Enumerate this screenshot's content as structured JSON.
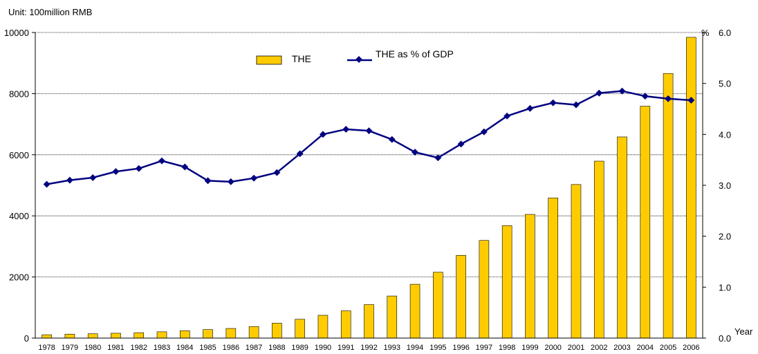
{
  "chart_data": {
    "type": "bar",
    "unit_label": "Unit: 100million RMB",
    "y2_unit": "%",
    "xlabel": "Year",
    "categories": [
      "1978",
      "1979",
      "1980",
      "1981",
      "1982",
      "1983",
      "1984",
      "1985",
      "1986",
      "1987",
      "1988",
      "1989",
      "1990",
      "1991",
      "1992",
      "1993",
      "1994",
      "1995",
      "1996",
      "1997",
      "1998",
      "1999",
      "2000",
      "2001",
      "2002",
      "2003",
      "2004",
      "2005",
      "2006"
    ],
    "ylim": [
      0,
      10000
    ],
    "yticks": [
      "0",
      "2000",
      "4000",
      "6000",
      "8000",
      "10000"
    ],
    "y2lim": [
      0,
      6
    ],
    "y2ticks": [
      "0.0",
      "1.0",
      "2.0",
      "3.0",
      "4.0",
      "5.0",
      "6.0"
    ],
    "grid": true,
    "legend_position": "top-center",
    "series": [
      {
        "name": "THE",
        "type": "bar",
        "axis": "left",
        "color": "#FFCC00",
        "values": [
          110,
          130,
          143,
          160,
          177,
          207,
          243,
          279,
          316,
          379,
          488,
          616,
          747,
          893,
          1097,
          1378,
          1762,
          2155,
          2709,
          3197,
          3679,
          4048,
          4587,
          5026,
          5791,
          6584,
          7590,
          8660,
          9843
        ]
      },
      {
        "name": "THE as % of GDP",
        "type": "line",
        "axis": "right",
        "color": "#000080",
        "values": [
          3.02,
          3.1,
          3.15,
          3.27,
          3.33,
          3.48,
          3.36,
          3.09,
          3.07,
          3.14,
          3.25,
          3.62,
          4.0,
          4.1,
          4.07,
          3.9,
          3.65,
          3.54,
          3.81,
          4.05,
          4.36,
          4.51,
          4.62,
          4.58,
          4.81,
          4.85,
          4.75,
          4.7,
          4.67
        ]
      }
    ]
  }
}
